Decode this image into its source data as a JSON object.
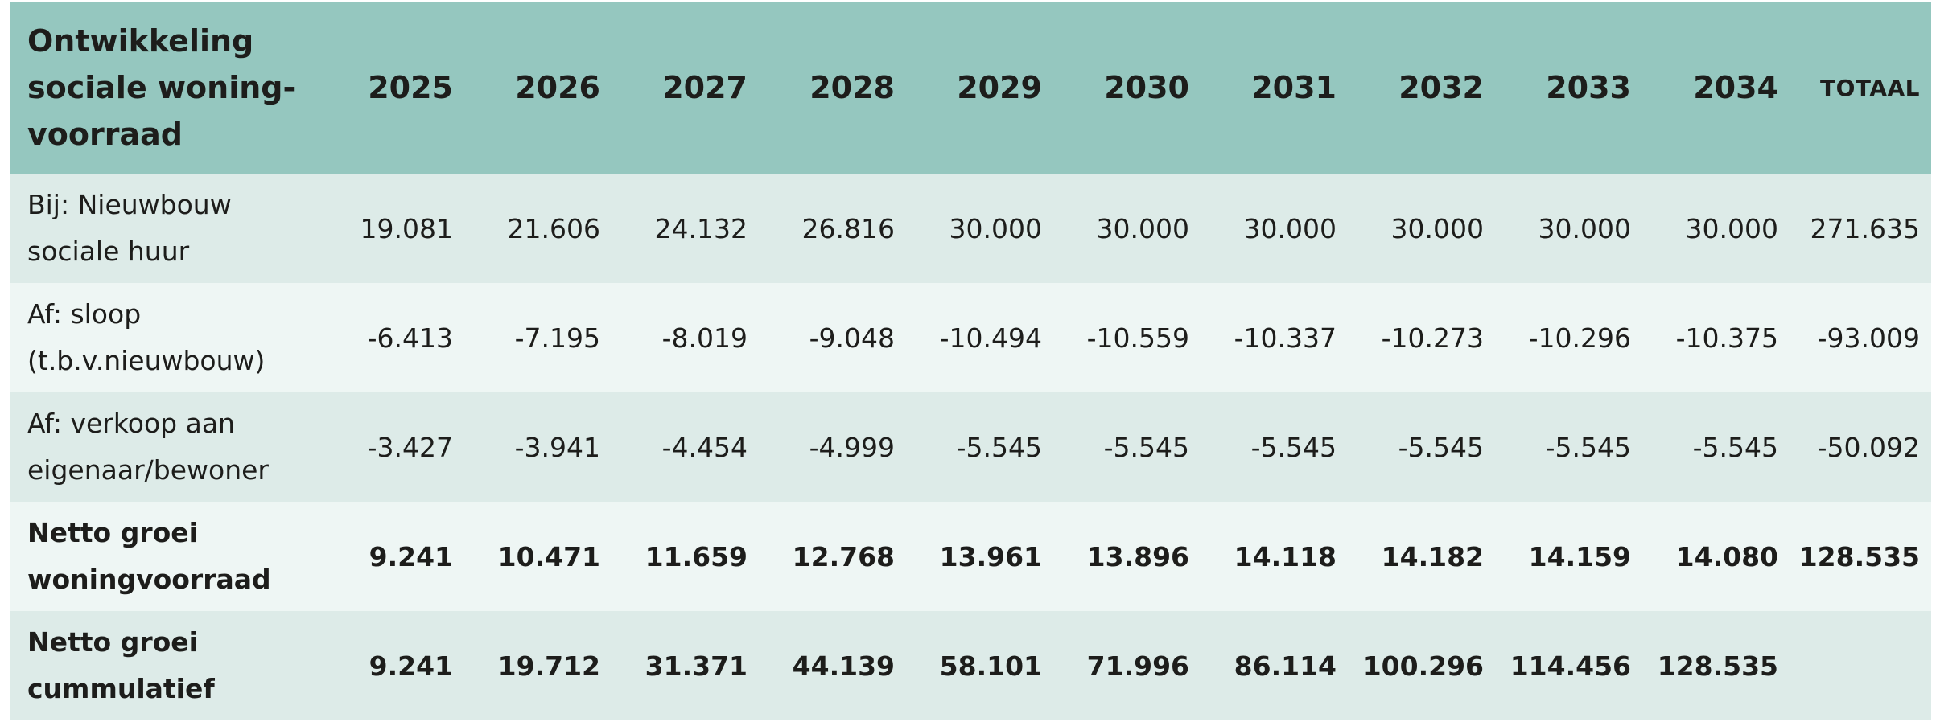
{
  "table": {
    "header": {
      "label": "Ontwikkeling sociale woning-voorraad",
      "label_lines": [
        "Ontwikkeling",
        "sociale woning-",
        "voorraad"
      ],
      "years": [
        "2025",
        "2026",
        "2027",
        "2028",
        "2029",
        "2030",
        "2031",
        "2032",
        "2033",
        "2034"
      ],
      "total": "TOTAAL"
    },
    "rows": [
      {
        "label_lines": [
          "Bij: Nieuwbouw",
          "sociale huur"
        ],
        "values": [
          "19.081",
          "21.606",
          "24.132",
          "26.816",
          "30.000",
          "30.000",
          "30.000",
          "30.000",
          "30.000",
          "30.000"
        ],
        "total": "271.635",
        "bold": false
      },
      {
        "label_lines": [
          "Af: sloop",
          "(t.b.v.nieuwbouw)"
        ],
        "values": [
          "-6.413",
          "-7.195",
          "-8.019",
          "-9.048",
          "-10.494",
          "-10.559",
          "-10.337",
          "-10.273",
          "-10.296",
          "-10.375"
        ],
        "total": "-93.009",
        "bold": false
      },
      {
        "label_lines": [
          "Af: verkoop aan",
          "eigenaar/bewoner"
        ],
        "values": [
          "-3.427",
          "-3.941",
          "-4.454",
          "-4.999",
          "-5.545",
          "-5.545",
          "-5.545",
          "-5.545",
          "-5.545",
          "-5.545"
        ],
        "total": "-50.092",
        "bold": false
      },
      {
        "label_lines": [
          "Netto groei",
          "woningvoorraad"
        ],
        "values": [
          "9.241",
          "10.471",
          "11.659",
          "12.768",
          "13.961",
          "13.896",
          "14.118",
          "14.182",
          "14.159",
          "14.080"
        ],
        "total": "128.535",
        "bold": true
      },
      {
        "label_lines": [
          "Netto groei",
          "cummulatief"
        ],
        "values": [
          "9.241",
          "19.712",
          "31.371",
          "44.139",
          "58.101",
          "71.996",
          "86.114",
          "100.296",
          "114.456",
          "128.535"
        ],
        "total": "",
        "bold": true
      }
    ],
    "colors": {
      "header_bg": "#95c7bf",
      "row_bg_odd": "#ddebe8",
      "row_bg_even": "#eef6f4",
      "text": "#1d1d1b"
    }
  }
}
